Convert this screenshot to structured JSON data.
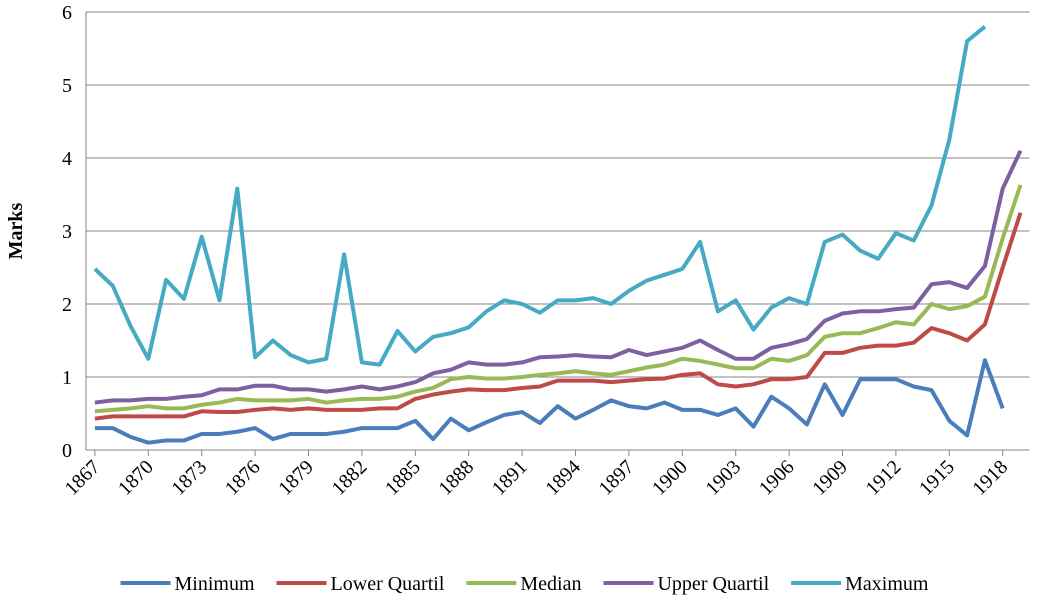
{
  "chart_data": {
    "type": "line",
    "y_label": "Marks",
    "categories": [
      "1867",
      null,
      null,
      "1870",
      null,
      null,
      "1873",
      null,
      null,
      "1876",
      null,
      null,
      "1879",
      null,
      null,
      "1882",
      null,
      null,
      "1885",
      null,
      null,
      "1888",
      null,
      null,
      "1891",
      null,
      null,
      "1894",
      null,
      null,
      "1897",
      null,
      null,
      "1900",
      null,
      null,
      "1903",
      null,
      null,
      "1906",
      null,
      null,
      "1909",
      null,
      null,
      "1912",
      null,
      null,
      "1915",
      null,
      null,
      "1918",
      null
    ],
    "ylim": [
      0,
      6
    ],
    "yticks": [
      0,
      1,
      2,
      3,
      4,
      5,
      6
    ],
    "grid": true,
    "legend": "bottom",
    "series": [
      {
        "name": "Minimum",
        "color": "#4a7ebb",
        "values": [
          0.3,
          0.3,
          0.18,
          0.1,
          0.13,
          0.13,
          0.22,
          0.22,
          0.25,
          0.3,
          0.15,
          0.22,
          0.22,
          0.22,
          0.25,
          0.3,
          0.3,
          0.3,
          0.4,
          0.15,
          0.43,
          0.27,
          0.38,
          0.48,
          0.52,
          0.37,
          0.6,
          0.43,
          0.55,
          0.68,
          0.6,
          0.57,
          0.65,
          0.55,
          0.55,
          0.48,
          0.57,
          0.32,
          0.73,
          0.57,
          0.35,
          0.9,
          0.48,
          0.97,
          0.97,
          0.97,
          0.87,
          0.82,
          0.4,
          0.2,
          1.23,
          0.57,
          null
        ]
      },
      {
        "name": "Lower Quartil",
        "color": "#be4b48",
        "values": [
          0.43,
          0.46,
          0.46,
          0.46,
          0.46,
          0.46,
          0.53,
          0.52,
          0.52,
          0.55,
          0.57,
          0.55,
          0.57,
          0.55,
          0.55,
          0.55,
          0.57,
          0.57,
          0.7,
          0.76,
          0.8,
          0.83,
          0.82,
          0.82,
          0.85,
          0.87,
          0.95,
          0.95,
          0.95,
          0.93,
          0.95,
          0.97,
          0.98,
          1.03,
          1.05,
          0.9,
          0.87,
          0.9,
          0.97,
          0.97,
          1.0,
          1.33,
          1.33,
          1.4,
          1.43,
          1.43,
          1.47,
          1.67,
          1.6,
          1.5,
          1.72,
          2.5,
          3.25
        ]
      },
      {
        "name": "Median",
        "color": "#98b954",
        "values": [
          0.53,
          0.55,
          0.57,
          0.6,
          0.57,
          0.57,
          0.62,
          0.65,
          0.7,
          0.68,
          0.68,
          0.68,
          0.7,
          0.65,
          0.68,
          0.7,
          0.7,
          0.73,
          0.8,
          0.85,
          0.97,
          1.0,
          0.98,
          0.98,
          1.0,
          1.03,
          1.05,
          1.08,
          1.05,
          1.03,
          1.08,
          1.13,
          1.17,
          1.25,
          1.22,
          1.17,
          1.12,
          1.12,
          1.25,
          1.22,
          1.3,
          1.55,
          1.6,
          1.6,
          1.67,
          1.75,
          1.72,
          2.0,
          1.93,
          1.97,
          2.1,
          2.9,
          3.63
        ]
      },
      {
        "name": "Upper Quartil",
        "color": "#7d60a0",
        "values": [
          0.65,
          0.68,
          0.68,
          0.7,
          0.7,
          0.73,
          0.75,
          0.83,
          0.83,
          0.88,
          0.88,
          0.83,
          0.83,
          0.8,
          0.83,
          0.87,
          0.83,
          0.87,
          0.93,
          1.05,
          1.1,
          1.2,
          1.17,
          1.17,
          1.2,
          1.27,
          1.28,
          1.3,
          1.28,
          1.27,
          1.37,
          1.3,
          1.35,
          1.4,
          1.5,
          1.37,
          1.25,
          1.25,
          1.4,
          1.45,
          1.52,
          1.77,
          1.87,
          1.9,
          1.9,
          1.93,
          1.95,
          2.27,
          2.3,
          2.22,
          2.52,
          3.58,
          4.1
        ]
      },
      {
        "name": "Maximum",
        "color": "#46aac5",
        "values": [
          2.48,
          2.25,
          1.7,
          1.25,
          2.33,
          2.07,
          2.92,
          2.05,
          3.58,
          1.27,
          1.5,
          1.3,
          1.2,
          1.25,
          2.68,
          1.2,
          1.17,
          1.63,
          1.35,
          1.55,
          1.6,
          1.68,
          1.9,
          2.05,
          2.0,
          1.88,
          2.05,
          2.05,
          2.08,
          2.0,
          2.18,
          2.32,
          2.4,
          2.48,
          2.85,
          1.9,
          2.05,
          1.65,
          1.95,
          2.08,
          2.0,
          2.85,
          2.95,
          2.73,
          2.62,
          2.97,
          2.87,
          3.35,
          4.25,
          5.6,
          5.8,
          null,
          null
        ]
      }
    ]
  }
}
